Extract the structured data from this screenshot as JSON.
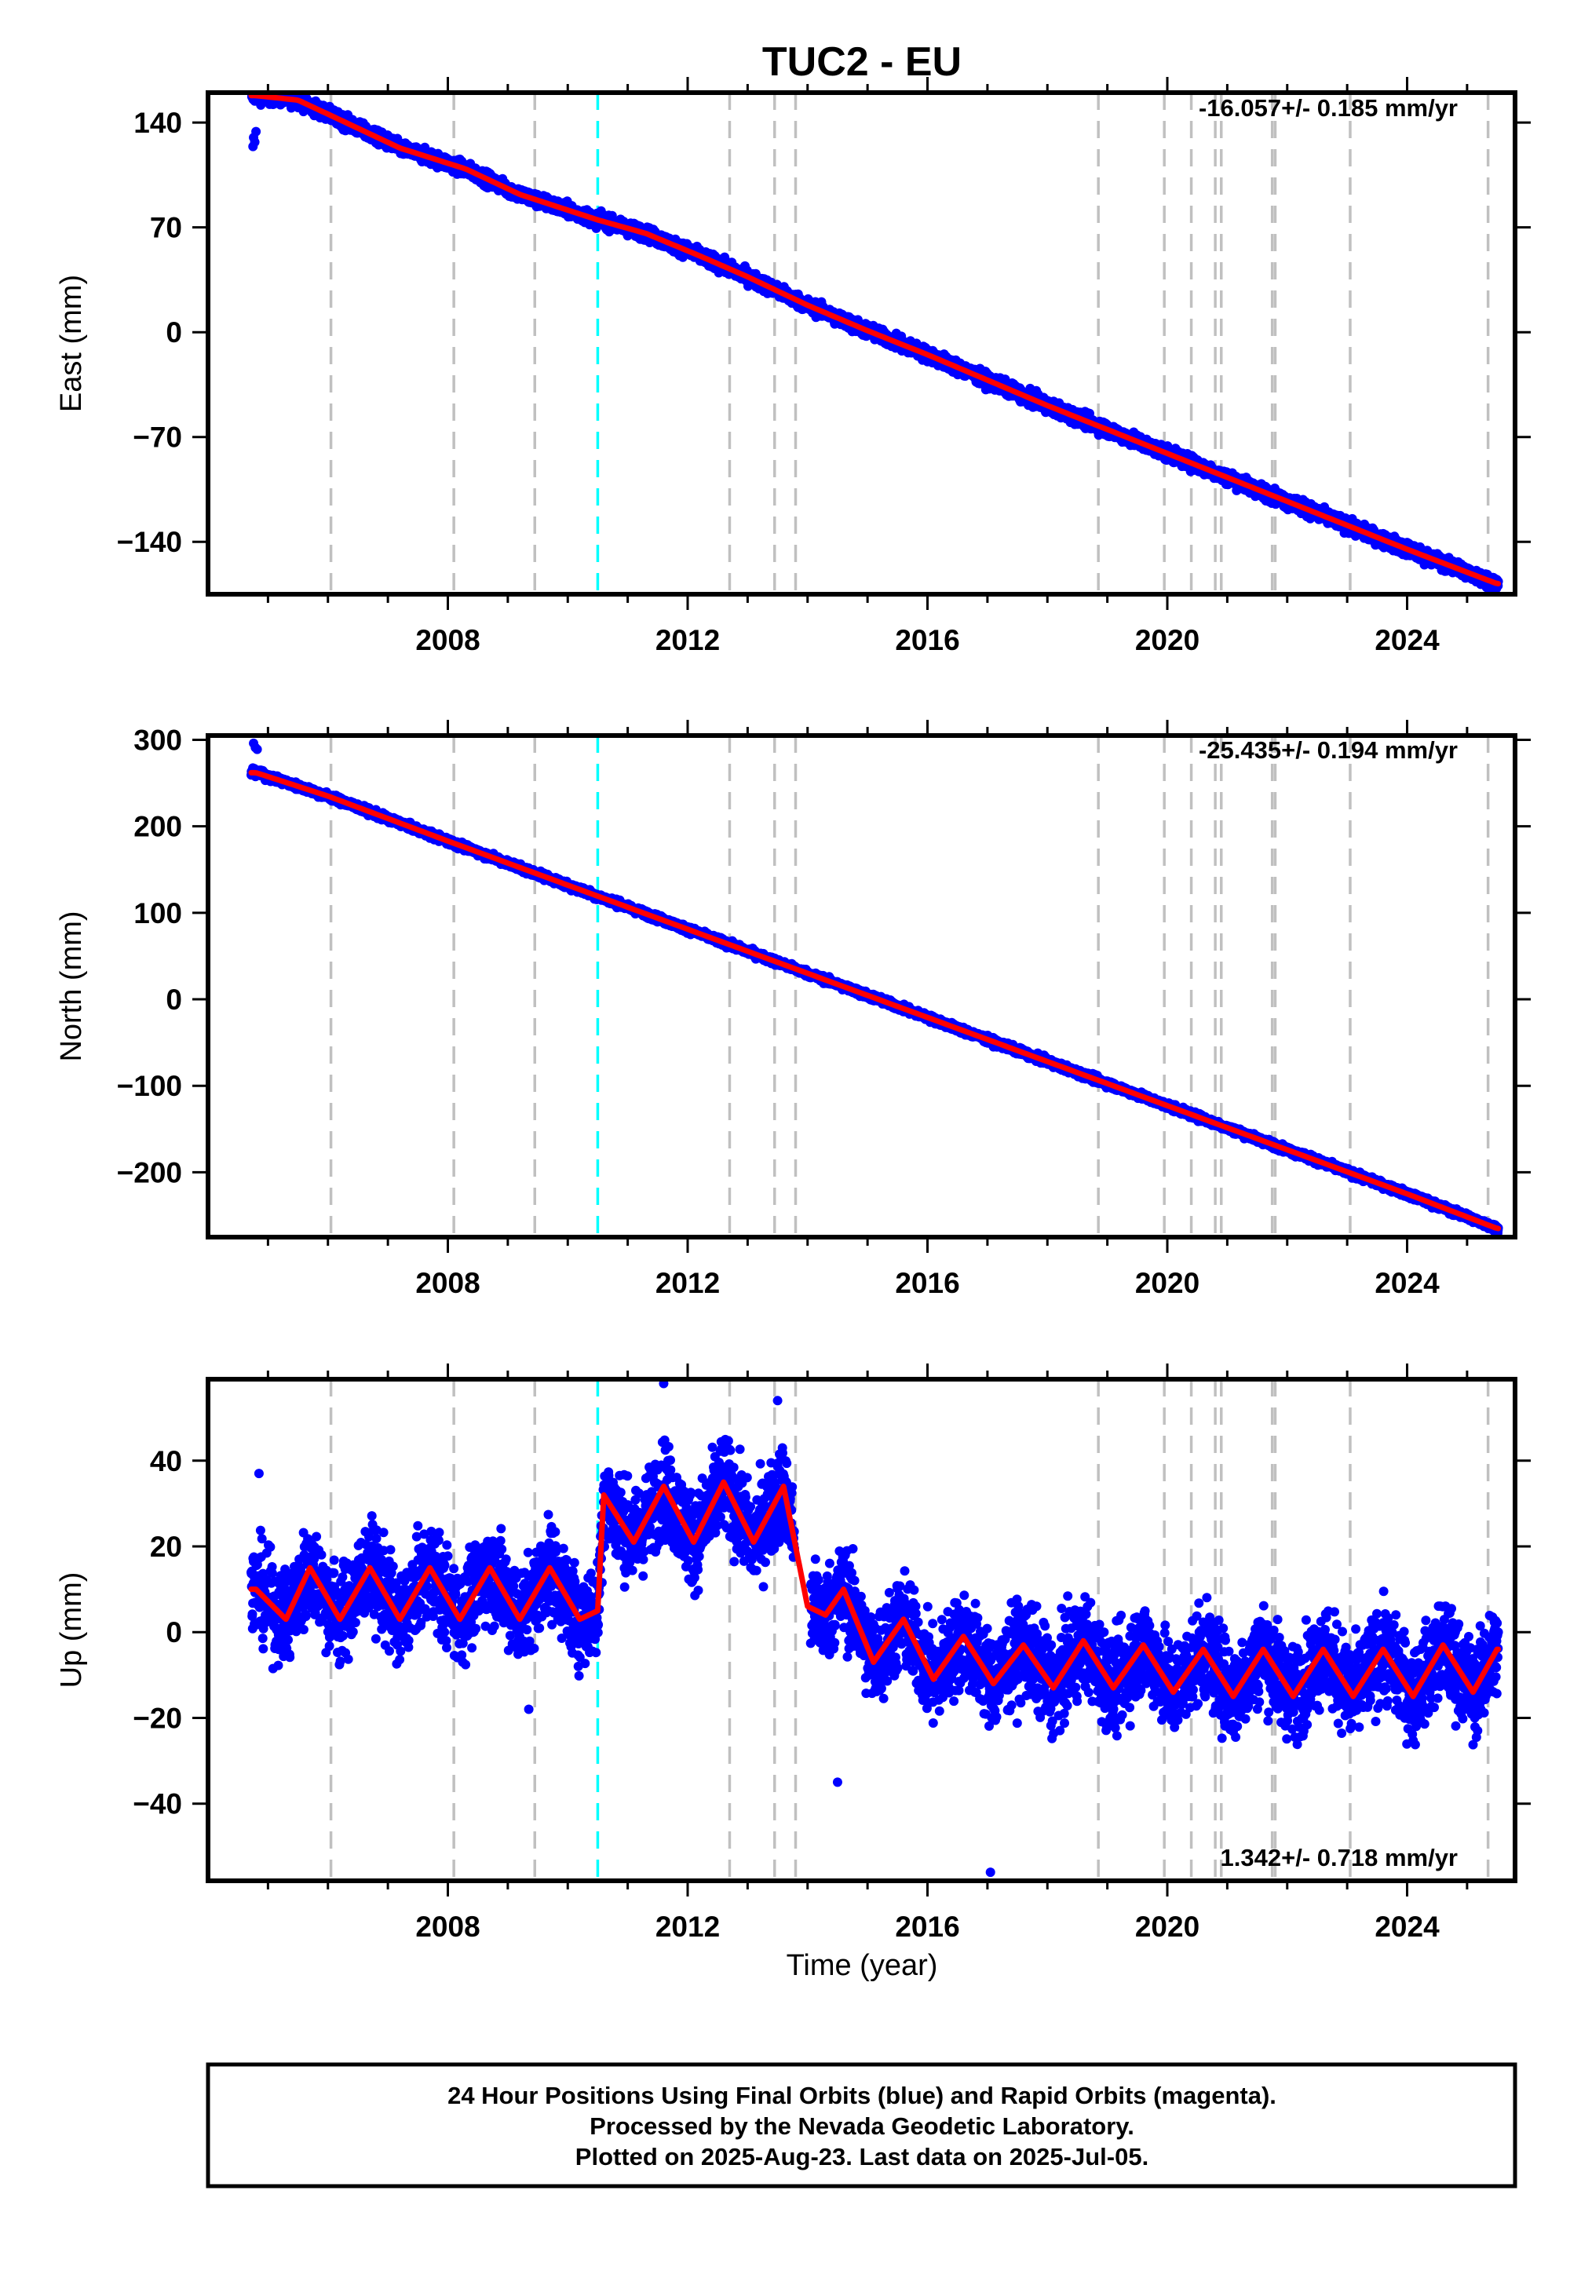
{
  "title": "TUC2 - EU",
  "xlabel": "Time (year)",
  "footer": [
    "24 Hour Positions Using Final Orbits (blue) and Rapid Orbits (magenta).",
    "Processed by the Nevada Geodetic Laboratory.",
    "Plotted on 2025-Aug-23. Last data on 2025-Jul-05."
  ],
  "colors": {
    "data_points": "#0000ff",
    "model_fit": "#ff0000",
    "equipment_change": "#c0c0c0",
    "earthquake": "#00ffff",
    "frame": "#000000"
  },
  "chart_data": [
    {
      "type": "scatter",
      "component": "East",
      "ylabel": "East (mm)",
      "rate_label": "-16.057+/- 0.185 mm/yr",
      "xlim": [
        2004.0,
        2025.8
      ],
      "ylim": [
        -175,
        160
      ],
      "x_ticks": [
        2008,
        2012,
        2016,
        2020,
        2024
      ],
      "y_ticks": [
        140,
        70,
        0,
        -70,
        -140
      ],
      "rate_mm_yr": -16.057,
      "series_points": [
        [
          2004.8,
          158
        ],
        [
          2005.5,
          155
        ],
        [
          2006.3,
          140
        ],
        [
          2007.2,
          123
        ],
        [
          2008.3,
          109
        ],
        [
          2009.2,
          92
        ],
        [
          2010.5,
          75
        ],
        [
          2011.3,
          66
        ],
        [
          2012.2,
          51
        ],
        [
          2013.0,
          37
        ],
        [
          2014.0,
          18
        ],
        [
          2015.0,
          1
        ],
        [
          2016.0,
          -15
        ],
        [
          2017.0,
          -32
        ],
        [
          2018.0,
          -49
        ],
        [
          2019.0,
          -65
        ],
        [
          2020.0,
          -81
        ],
        [
          2021.0,
          -97
        ],
        [
          2022.0,
          -113
        ],
        [
          2023.0,
          -129
        ],
        [
          2024.0,
          -145
        ],
        [
          2025.5,
          -168
        ]
      ]
    },
    {
      "type": "scatter",
      "component": "North",
      "ylabel": "North (mm)",
      "rate_label": "-25.435+/- 0.194 mm/yr",
      "xlim": [
        2004.0,
        2025.8
      ],
      "ylim": [
        -275,
        305
      ],
      "x_ticks": [
        2008,
        2012,
        2016,
        2020,
        2024
      ],
      "y_ticks": [
        300,
        200,
        100,
        0,
        -100,
        -200
      ],
      "rate_mm_yr": -25.435,
      "series_points": [
        [
          2004.8,
          262
        ],
        [
          2006.0,
          235
        ],
        [
          2008.0,
          183
        ],
        [
          2010.0,
          132
        ],
        [
          2012.0,
          81
        ],
        [
          2014.0,
          30
        ],
        [
          2016.0,
          -21
        ],
        [
          2018.0,
          -72
        ],
        [
          2020.0,
          -123
        ],
        [
          2022.0,
          -174
        ],
        [
          2024.0,
          -225
        ],
        [
          2025.5,
          -265
        ]
      ]
    },
    {
      "type": "scatter",
      "component": "Up",
      "ylabel": "Up (mm)",
      "rate_label": "1.342+/- 0.718 mm/yr",
      "xlim": [
        2004.0,
        2025.8
      ],
      "ylim": [
        -58,
        59
      ],
      "x_ticks": [
        2008,
        2012,
        2016,
        2020,
        2024
      ],
      "y_ticks": [
        40,
        20,
        0,
        -20,
        -40
      ],
      "rate_mm_yr": 1.342,
      "series_points": [
        [
          2004.8,
          10
        ],
        [
          2005.3,
          3
        ],
        [
          2005.7,
          15
        ],
        [
          2006.2,
          3
        ],
        [
          2006.7,
          15
        ],
        [
          2007.2,
          3
        ],
        [
          2007.7,
          15
        ],
        [
          2008.2,
          3
        ],
        [
          2008.7,
          15
        ],
        [
          2009.2,
          3
        ],
        [
          2009.7,
          15
        ],
        [
          2010.2,
          3
        ],
        [
          2010.5,
          5
        ],
        [
          2010.6,
          32
        ],
        [
          2011.1,
          21
        ],
        [
          2011.6,
          34
        ],
        [
          2012.1,
          21
        ],
        [
          2012.6,
          35
        ],
        [
          2013.1,
          21
        ],
        [
          2013.6,
          34
        ],
        [
          2013.8,
          20
        ],
        [
          2014.0,
          6
        ],
        [
          2014.3,
          4
        ],
        [
          2014.6,
          10
        ],
        [
          2015.1,
          -7
        ],
        [
          2015.6,
          3
        ],
        [
          2016.1,
          -11
        ],
        [
          2016.6,
          -1
        ],
        [
          2017.1,
          -12
        ],
        [
          2017.6,
          -3
        ],
        [
          2018.1,
          -13
        ],
        [
          2018.6,
          -2
        ],
        [
          2019.1,
          -13
        ],
        [
          2019.6,
          -3
        ],
        [
          2020.1,
          -14
        ],
        [
          2020.6,
          -4
        ],
        [
          2021.1,
          -15
        ],
        [
          2021.6,
          -4
        ],
        [
          2022.1,
          -15
        ],
        [
          2022.6,
          -4
        ],
        [
          2023.1,
          -15
        ],
        [
          2023.6,
          -4
        ],
        [
          2024.1,
          -15
        ],
        [
          2024.6,
          -3
        ],
        [
          2025.1,
          -14
        ],
        [
          2025.5,
          -4
        ]
      ],
      "outliers": [
        [
          2004.85,
          37
        ],
        [
          2009.35,
          -18
        ],
        [
          2011.6,
          58
        ],
        [
          2013.5,
          54
        ],
        [
          2014.5,
          -35
        ],
        [
          2017.05,
          -56
        ]
      ]
    }
  ],
  "equipment_change_years": [
    2006.05,
    2008.1,
    2009.45,
    2012.7,
    2013.45,
    2013.8,
    2018.85,
    2019.95,
    2020.4,
    2020.8,
    2020.9,
    2021.75,
    2021.8,
    2023.05,
    2025.35
  ],
  "earthquake_years": [
    2010.5
  ]
}
